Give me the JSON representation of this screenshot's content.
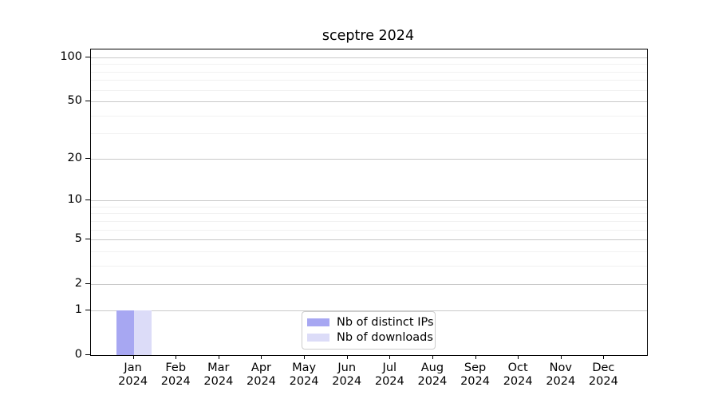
{
  "chart_data": {
    "type": "bar",
    "title": "sceptre 2024",
    "categories": [
      "Jan 2024",
      "Feb 2024",
      "Mar 2024",
      "Apr 2024",
      "May 2024",
      "Jun 2024",
      "Jul 2024",
      "Aug 2024",
      "Sep 2024",
      "Oct 2024",
      "Nov 2024",
      "Dec 2024"
    ],
    "series": [
      {
        "name": "Nb of distinct IPs",
        "color": "#a7a7f2",
        "values": [
          1,
          0,
          0,
          0,
          0,
          0,
          0,
          0,
          0,
          0,
          0,
          0
        ]
      },
      {
        "name": "Nb of downloads",
        "color": "#dcdcf8",
        "values": [
          1,
          0,
          0,
          0,
          0,
          0,
          0,
          0,
          0,
          0,
          0,
          0
        ]
      }
    ],
    "xlabel": "",
    "ylabel": "",
    "yscale": "log1p",
    "ylim": [
      0,
      113
    ],
    "y_major_ticks": [
      0,
      1,
      2,
      5,
      10,
      20,
      50,
      100
    ],
    "y_minor_gridlines": [
      3,
      4,
      6,
      7,
      8,
      9,
      30,
      40,
      60,
      70,
      80,
      90
    ],
    "grid": true,
    "legend_position": "lower center"
  }
}
